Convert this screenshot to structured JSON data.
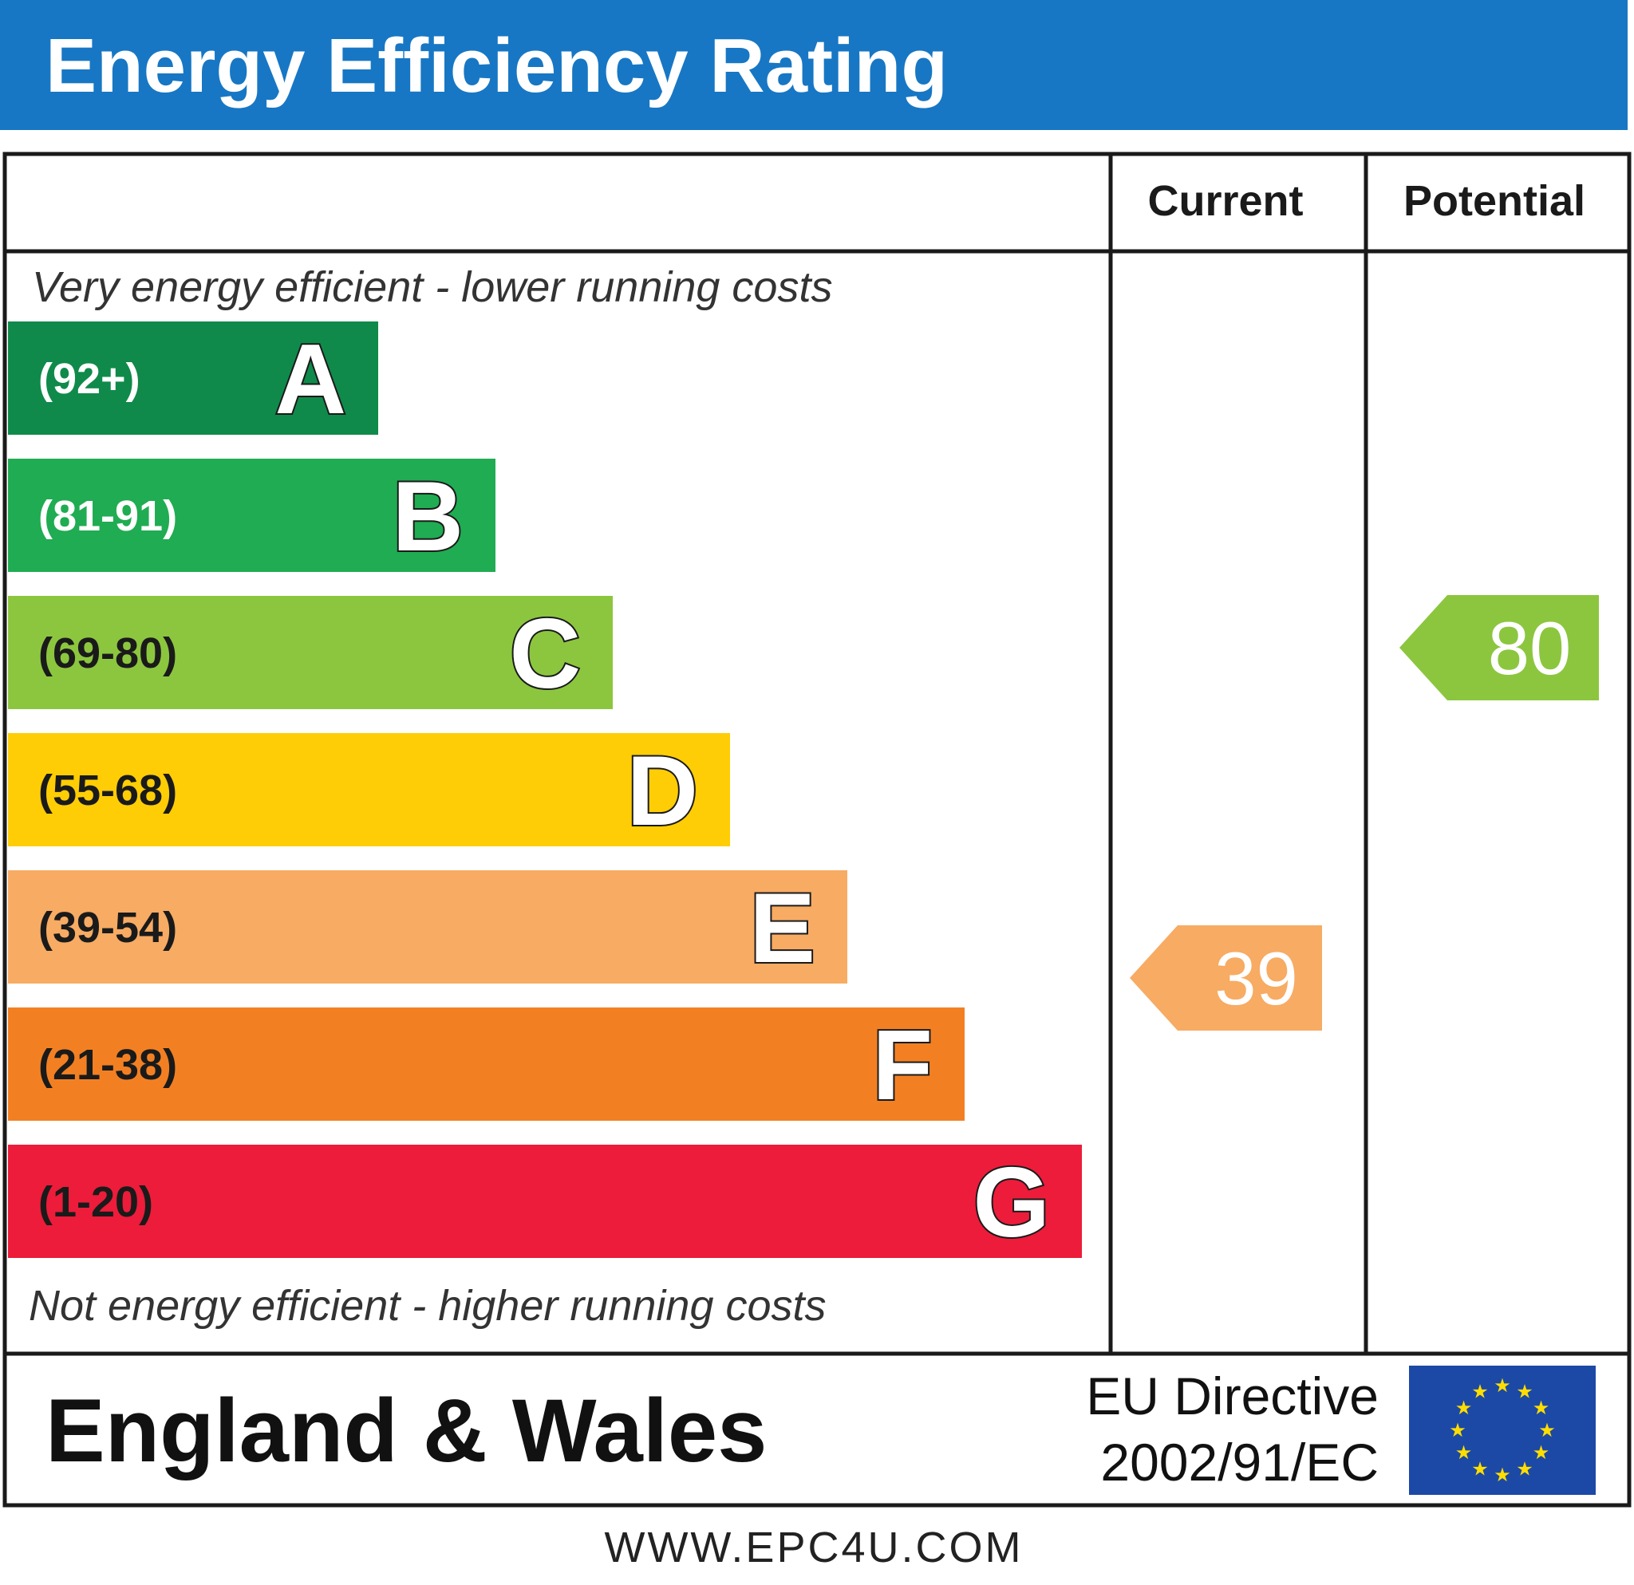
{
  "header": {
    "title": "Energy Efficiency Rating"
  },
  "columns": {
    "current_label": "Current",
    "potential_label": "Potential"
  },
  "notes": {
    "top": "Very energy efficient - lower running costs",
    "bottom": "Not energy efficient - higher running costs"
  },
  "footer": {
    "region": "England & Wales",
    "directive_line1": "EU Directive",
    "directive_line2": "2002/91/EC",
    "url": "WWW.EPC4U.COM",
    "flag_icon": "eu-flag-icon"
  },
  "chart_data": {
    "type": "bar",
    "title": "Energy Efficiency Rating",
    "bands": [
      {
        "letter": "A",
        "range": "(92+)",
        "color": "#0f8a4a",
        "range_color": "#ffffff"
      },
      {
        "letter": "B",
        "range": "(81-91)",
        "color": "#20ac52",
        "range_color": "#ffffff"
      },
      {
        "letter": "C",
        "range": "(69-80)",
        "color": "#8cc63f",
        "range_color": "#1a1a1a"
      },
      {
        "letter": "D",
        "range": "(55-68)",
        "color": "#ffcd05",
        "range_color": "#1a1a1a"
      },
      {
        "letter": "E",
        "range": "(39-54)",
        "color": "#f7ab63",
        "range_color": "#1a1a1a"
      },
      {
        "letter": "F",
        "range": "(21-38)",
        "color": "#f28023",
        "range_color": "#1a1a1a"
      },
      {
        "letter": "G",
        "range": "(1-20)",
        "color": "#ec1c3a",
        "range_color": "#1a1a1a"
      }
    ],
    "ratings": [
      {
        "name": "Current",
        "value": 39,
        "band": "E",
        "color": "#f7ab63"
      },
      {
        "name": "Potential",
        "value": 80,
        "band": "C",
        "color": "#8cc63f"
      }
    ]
  },
  "colors": {
    "header_bg": "#1777c4",
    "border": "#1a1a1a",
    "eu_flag_bg": "#1c49a6",
    "eu_star": "#ffdd00"
  }
}
